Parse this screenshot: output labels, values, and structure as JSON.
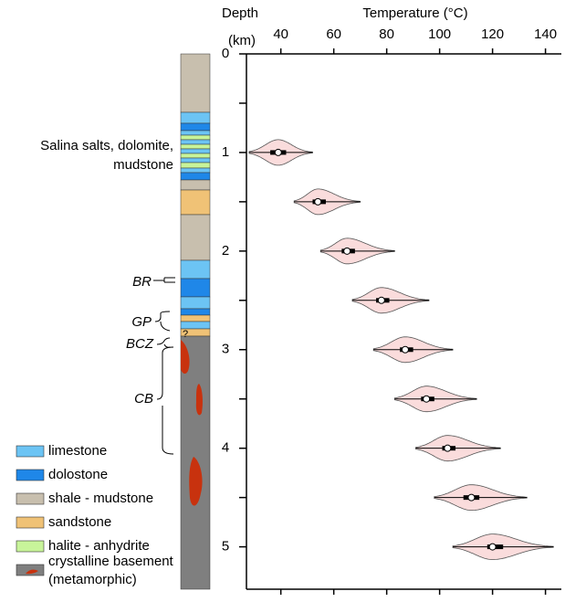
{
  "chart_data": {
    "type": "violin",
    "x_label": "Temperature (°C)",
    "y_label": "Depth",
    "y_unit": "(km)",
    "xlim": [
      27,
      146
    ],
    "xticks": [
      40,
      60,
      80,
      100,
      120,
      140
    ],
    "ylim": [
      0,
      5.43
    ],
    "y_inverted": true,
    "yticks": [
      0,
      1,
      2,
      3,
      4,
      5
    ],
    "yticks_minor": [
      0.5,
      1.5,
      2.5,
      3.5,
      4.5
    ],
    "color": "#fadcdc",
    "edge_color": "#555555",
    "violins": [
      {
        "depth": 1,
        "min": 28,
        "q1": 36,
        "median": 39,
        "q3": 42,
        "max": 52
      },
      {
        "depth": 1.5,
        "min": 45,
        "q1": 52,
        "median": 54,
        "q3": 57,
        "max": 70
      },
      {
        "depth": 2,
        "min": 55,
        "q1": 63,
        "median": 65,
        "q3": 68,
        "max": 83
      },
      {
        "depth": 2.5,
        "min": 67,
        "q1": 76,
        "median": 78,
        "q3": 81,
        "max": 96
      },
      {
        "depth": 3,
        "min": 75,
        "q1": 85,
        "median": 87,
        "q3": 90,
        "max": 105
      },
      {
        "depth": 3.5,
        "min": 83,
        "q1": 93,
        "median": 95,
        "q3": 98,
        "max": 114
      },
      {
        "depth": 4,
        "min": 91,
        "q1": 101,
        "median": 103,
        "q3": 106,
        "max": 123
      },
      {
        "depth": 4.5,
        "min": 98,
        "q1": 109,
        "median": 112,
        "q3": 115,
        "max": 133
      },
      {
        "depth": 5,
        "min": 105,
        "q1": 118,
        "median": 120,
        "q3": 124,
        "max": 143
      }
    ]
  },
  "column_labels": {
    "salina": [
      "Salina salts, dolomite,",
      "mudstone"
    ],
    "br": "BR",
    "gp": "GP",
    "bcz": "BCZ",
    "cb": "CB",
    "question": "?"
  },
  "legend": [
    {
      "label": [
        "limestone"
      ],
      "color": "#6cc4f4"
    },
    {
      "label": [
        "dolostone"
      ],
      "color": "#1f87e8"
    },
    {
      "label": [
        "shale - mudstone"
      ],
      "color": "#c8bfae"
    },
    {
      "label": [
        "sandstone"
      ],
      "color": "#f0c276"
    },
    {
      "label": [
        "halite - anhydrite"
      ],
      "color": "#c8f49a"
    },
    {
      "label": [
        "crystalline basement",
        "(metamorphic)"
      ],
      "color": "#7f7f7f"
    }
  ]
}
